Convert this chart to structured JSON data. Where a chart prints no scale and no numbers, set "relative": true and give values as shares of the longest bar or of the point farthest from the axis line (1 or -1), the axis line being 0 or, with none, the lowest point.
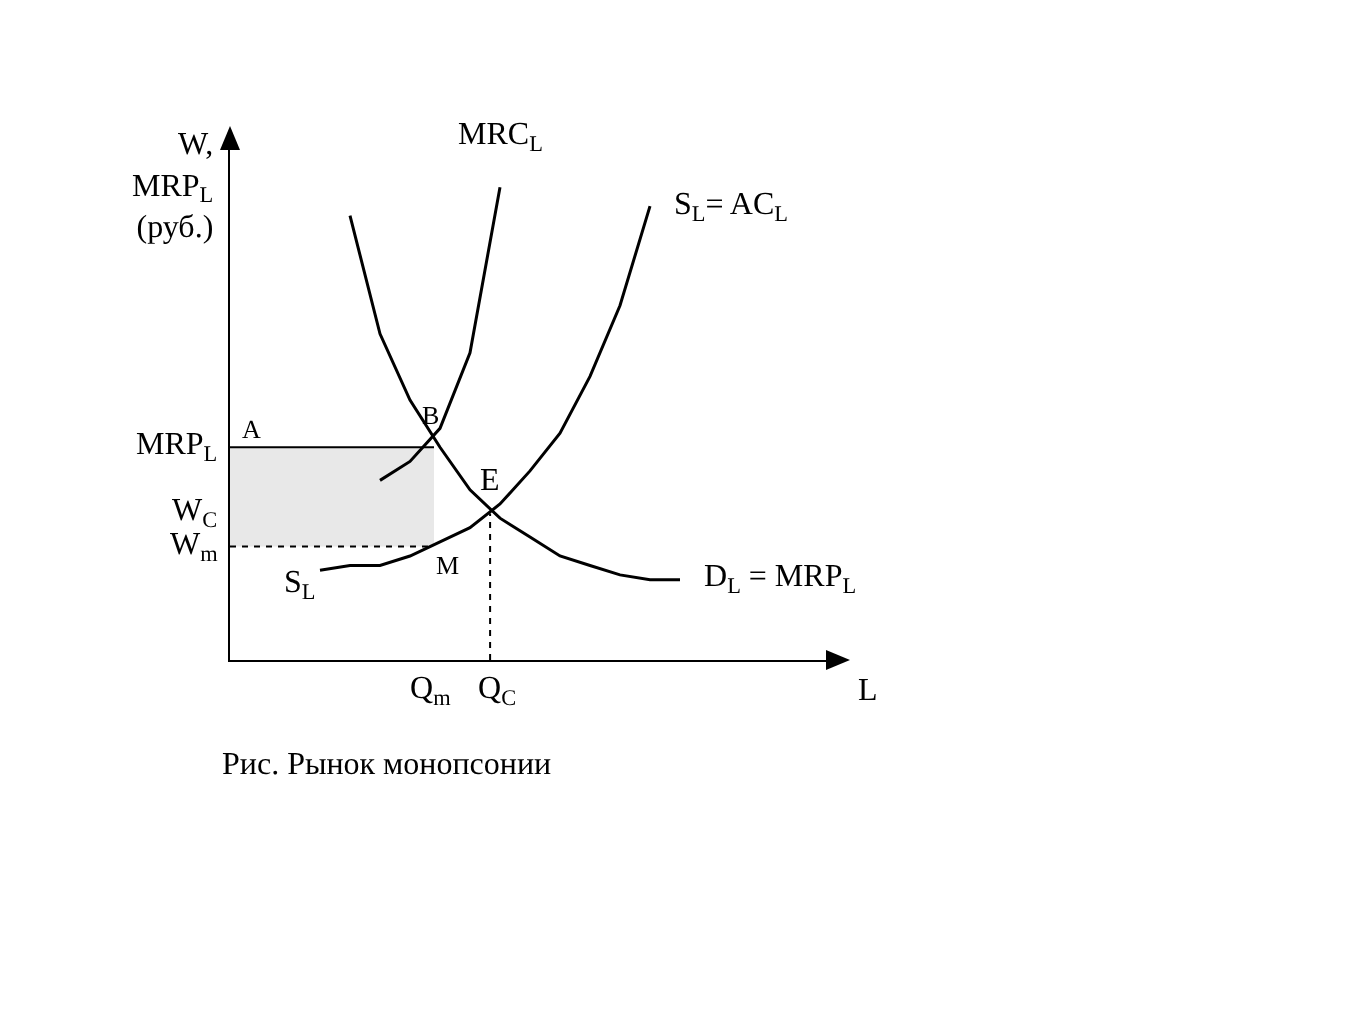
{
  "chart_data": {
    "type": "line",
    "relative": true,
    "xlabel": "L",
    "ylabel": "W,\nMRP$_{L}$\n(руб.)",
    "categories": [
      null,
      null,
      null,
      null,
      null,
      null,
      null,
      null,
      null,
      null,
      null,
      null,
      null,
      null,
      null,
      null,
      null,
      null,
      null,
      null,
      null
    ],
    "series": [
      {
        "name": "MRC$_{L}$",
        "color": "#000000",
        "values": [
          null,
          null,
          null,
          null,
          null,
          0.38,
          0.42,
          0.49,
          0.65,
          1.0,
          null,
          null,
          null,
          null,
          null,
          null,
          null,
          null,
          null,
          null,
          null
        ]
      },
      {
        "name": "S$_{L}$= AC$_{L}$",
        "color": "#000000",
        "values": [
          null,
          null,
          null,
          0.19,
          0.2,
          0.2,
          0.22,
          0.25,
          0.28,
          0.33,
          0.4,
          0.48,
          0.6,
          0.75,
          0.96,
          null,
          null,
          null,
          null,
          null,
          null
        ]
      },
      {
        "name": "D$_{L}$ = MRP$_{L}$",
        "color": "#000000",
        "values": [
          null,
          null,
          null,
          null,
          0.94,
          0.69,
          0.55,
          0.45,
          0.36,
          0.3,
          0.26,
          0.22,
          0.2,
          0.18,
          0.17,
          0.17,
          null,
          null,
          null,
          null,
          null
        ]
      }
    ],
    "ref_lines": [
      {
        "axis": "y",
        "value": 0.45,
        "label": "MRP$_{L}$",
        "line_style": "solid",
        "color": "#000000"
      },
      {
        "axis": "y",
        "value": 0.24,
        "label": "W$_{m}$",
        "line_style": "dotted",
        "color": "#000000"
      }
    ],
    "bands": [
      {
        "axis": "y",
        "from": 0.24,
        "to": 0.45,
        "color": "#e8e8e8"
      }
    ],
    "annotations": [
      "A",
      "B",
      "E",
      "M",
      "S$_{L}$",
      "W$_{C}$",
      "Q$_{m}$",
      "Q$_{C}$",
      "Рис. Рынок монопсонии"
    ],
    "marker": "none",
    "line_style": "solid",
    "legend": false
  }
}
